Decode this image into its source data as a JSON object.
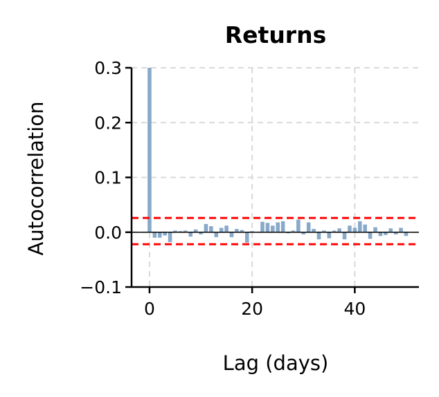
{
  "chart_data": {
    "type": "bar",
    "title": "Returns",
    "xlabel": "Lag (days)",
    "ylabel": "Autocorrelation",
    "xlim": [
      -3.5,
      52.5
    ],
    "ylim": [
      -0.1,
      0.3
    ],
    "x_ticks": [
      0,
      20,
      40
    ],
    "x_tick_labels": [
      "0",
      "20",
      "40"
    ],
    "y_ticks": [
      -0.1,
      0.0,
      0.1,
      0.2,
      0.3
    ],
    "y_tick_labels": [
      "−0.1",
      "0.0",
      "0.1",
      "0.2",
      "0.3"
    ],
    "grid": true,
    "confidence_band": [
      -0.022,
      0.026
    ],
    "lags": [
      0,
      1,
      2,
      3,
      4,
      5,
      6,
      7,
      8,
      9,
      10,
      11,
      12,
      13,
      14,
      15,
      16,
      17,
      18,
      19,
      20,
      21,
      22,
      23,
      24,
      25,
      26,
      27,
      28,
      29,
      30,
      31,
      32,
      33,
      34,
      35,
      36,
      37,
      38,
      39,
      40,
      41,
      42,
      43,
      44,
      45,
      46,
      47,
      48,
      49,
      50
    ],
    "values": [
      0.3,
      -0.01,
      -0.01,
      -0.006,
      -0.018,
      0.003,
      0.002,
      0.003,
      -0.008,
      0.005,
      -0.004,
      0.015,
      0.011,
      -0.009,
      0.008,
      0.012,
      -0.009,
      0.006,
      0.004,
      -0.019,
      0.002,
      0.001,
      0.019,
      0.017,
      0.012,
      0.018,
      0.02,
      -0.002,
      0.003,
      0.023,
      -0.004,
      0.018,
      0.006,
      -0.013,
      0.003,
      -0.011,
      0.003,
      0.007,
      -0.013,
      0.012,
      0.008,
      0.02,
      0.014,
      -0.012,
      0.009,
      -0.007,
      -0.005,
      0.007,
      -0.004,
      0.008,
      -0.007
    ],
    "colors": {
      "bar": "#88a9c9",
      "confidence": "#ff0000",
      "zero_line": "#000000",
      "grid": "#d9d9d9"
    }
  }
}
